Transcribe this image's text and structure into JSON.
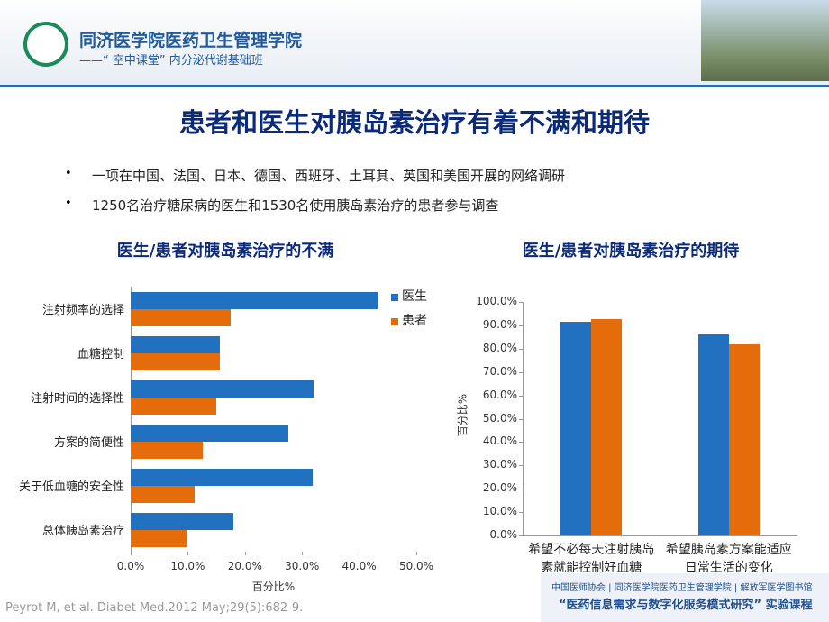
{
  "header": {
    "school": "同济医学院医药卫生管理学院",
    "course": "——“ 空中课堂” 内分泌代谢基础班"
  },
  "title": "患者和医生对胰岛素治疗有着不满和期待",
  "bullets": [
    "一项在中国、法国、日本、德国、西班牙、土耳其、英国和美国开展的网络调研",
    "1250名治疗糖尿病的医生和1530名使用胰岛素治疗的患者参与调查"
  ],
  "chart_data": [
    {
      "type": "hbar",
      "title": "医生/患者对胰岛素治疗的不满",
      "xlabel": "百分比%",
      "categories": [
        "注射频率的选择",
        "血糖控制",
        "注射时间的选择性",
        "方案的简便性",
        "关于低血糖的安全性",
        "总体胰岛素治疗"
      ],
      "series": [
        {
          "name": "医生",
          "color": "#2270c0",
          "values": [
            43.2,
            15.6,
            32.0,
            27.6,
            31.9,
            18.0
          ]
        },
        {
          "name": "患者",
          "color": "#e46c0a",
          "values": [
            17.5,
            15.6,
            15.0,
            12.6,
            11.2,
            9.8
          ]
        }
      ],
      "xlim": [
        0,
        50
      ],
      "xticks": [
        {
          "value": 0,
          "label": "0.0%"
        },
        {
          "value": 10,
          "label": "10.0%"
        },
        {
          "value": 20,
          "label": "20.0%"
        },
        {
          "value": 30,
          "label": "30.0%"
        },
        {
          "value": 40,
          "label": "40.0%"
        },
        {
          "value": 50,
          "label": "50.0%"
        }
      ],
      "legend": "top-right"
    },
    {
      "type": "bar",
      "title": "医生/患者对胰岛素治疗的期待",
      "ylabel": "百分比%",
      "categories": [
        "希望不必每天注射胰岛素就能控制好血糖",
        "希望胰岛素方案能适应日常生活的变化"
      ],
      "series": [
        {
          "color": "#2270c0",
          "values": [
            91.5,
            86.1
          ]
        },
        {
          "color": "#e46c0a",
          "values": [
            92.7,
            81.9
          ]
        }
      ],
      "ylim": [
        0,
        100
      ],
      "yticks": [
        {
          "value": 0,
          "label": "0.0%"
        },
        {
          "value": 10,
          "label": "10.0%"
        },
        {
          "value": 20,
          "label": "20.0%"
        },
        {
          "value": 30,
          "label": "30.0%"
        },
        {
          "value": 40,
          "label": "40.0%"
        },
        {
          "value": 50,
          "label": "50.0%"
        },
        {
          "value": 60,
          "label": "60.0%"
        },
        {
          "value": 70,
          "label": "70.0%"
        },
        {
          "value": 80,
          "label": "80.0%"
        },
        {
          "value": 90,
          "label": "90.0%"
        },
        {
          "value": 100,
          "label": "100.0%"
        }
      ]
    }
  ],
  "citation": "Peyrot M, et al. Diabet Med.2012 May;29(5):682-9.",
  "footer": {
    "orgs": "中国医师协会 | 同济医学院医药卫生管理学院 | 解放军医学图书馆",
    "project": "“医药信息需求与数字化服务模式研究” 实验课程"
  }
}
